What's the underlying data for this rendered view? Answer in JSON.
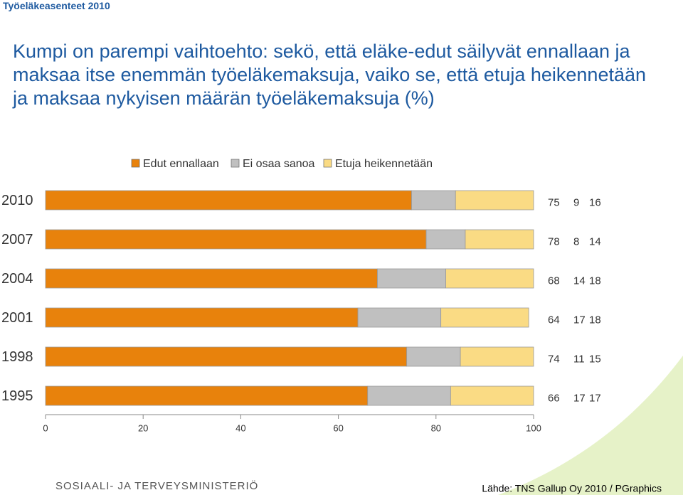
{
  "header": "Työeläkeasenteet 2010",
  "logo": "SOSIAALI- JA TERVEYSMINISTERIÖ",
  "source": "Lähde: TNS Gallup Oy 2010 / PGraphics",
  "chart_data": {
    "type": "stacked-bar-horizontal",
    "title": "Kumpi on parempi vaihtoehto: sekö, että eläke-edut säilyvät ennallaan ja maksaa itse enemmän työeläkemaksuja, vaiko se, että etuja heikennetään ja maksaa nykyisen määrän työeläkemaksuja (%)",
    "categories": [
      "2010",
      "2007",
      "2004",
      "2001",
      "1998",
      "1995"
    ],
    "series": [
      {
        "name": "Edut ennallaan",
        "color": "#e8820c",
        "values": [
          75,
          78,
          68,
          64,
          74,
          66
        ]
      },
      {
        "name": "Ei osaa sanoa",
        "color": "#c0c0c0",
        "values": [
          9,
          8,
          14,
          17,
          11,
          17
        ]
      },
      {
        "name": "Etuja heikennetään",
        "color": "#fadb84",
        "values": [
          16,
          14,
          18,
          18,
          15,
          17
        ]
      }
    ],
    "xlim": [
      0,
      100
    ],
    "xticks": [
      0,
      20,
      40,
      60,
      80,
      100
    ]
  }
}
